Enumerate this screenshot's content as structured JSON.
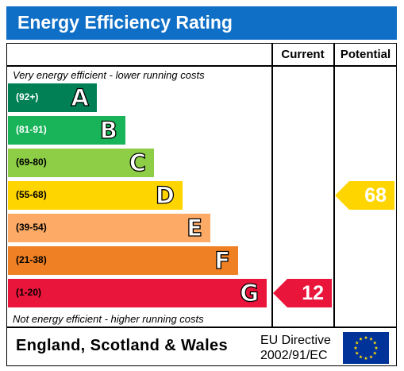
{
  "title": "Energy Efficiency Rating",
  "columns": {
    "current": "Current",
    "potential": "Potential"
  },
  "top_note": "Very energy efficient - lower running costs",
  "bottom_note": "Not energy efficient - higher running costs",
  "footer": {
    "region": "England, Scotland & Wales",
    "directive_line1": "EU Directive",
    "directive_line2": "2002/91/EC"
  },
  "colors": {
    "title_bg": "#0f6fc6",
    "A": "#008054",
    "B": "#19b459",
    "C": "#8dce46",
    "D": "#ffd500",
    "E": "#fcaa65",
    "F": "#ef8023",
    "G": "#e9153b",
    "eu_flag": "#003399",
    "eu_stars": "#ffdd00"
  },
  "chart_data": {
    "type": "bar",
    "title": "Energy Efficiency Rating",
    "categories": [
      "A",
      "B",
      "C",
      "D",
      "E",
      "F",
      "G"
    ],
    "bands": [
      {
        "letter": "A",
        "range": "(92+)",
        "min": 92,
        "max": 100
      },
      {
        "letter": "B",
        "range": "(81-91)",
        "min": 81,
        "max": 91
      },
      {
        "letter": "C",
        "range": "(69-80)",
        "min": 69,
        "max": 80
      },
      {
        "letter": "D",
        "range": "(55-68)",
        "min": 55,
        "max": 68
      },
      {
        "letter": "E",
        "range": "(39-54)",
        "min": 39,
        "max": 54
      },
      {
        "letter": "F",
        "range": "(21-38)",
        "min": 21,
        "max": 38
      },
      {
        "letter": "G",
        "range": "(1-20)",
        "min": 1,
        "max": 20
      }
    ],
    "series": [
      {
        "name": "Current",
        "value": 12,
        "band": "G"
      },
      {
        "name": "Potential",
        "value": 68,
        "band": "D"
      }
    ]
  }
}
